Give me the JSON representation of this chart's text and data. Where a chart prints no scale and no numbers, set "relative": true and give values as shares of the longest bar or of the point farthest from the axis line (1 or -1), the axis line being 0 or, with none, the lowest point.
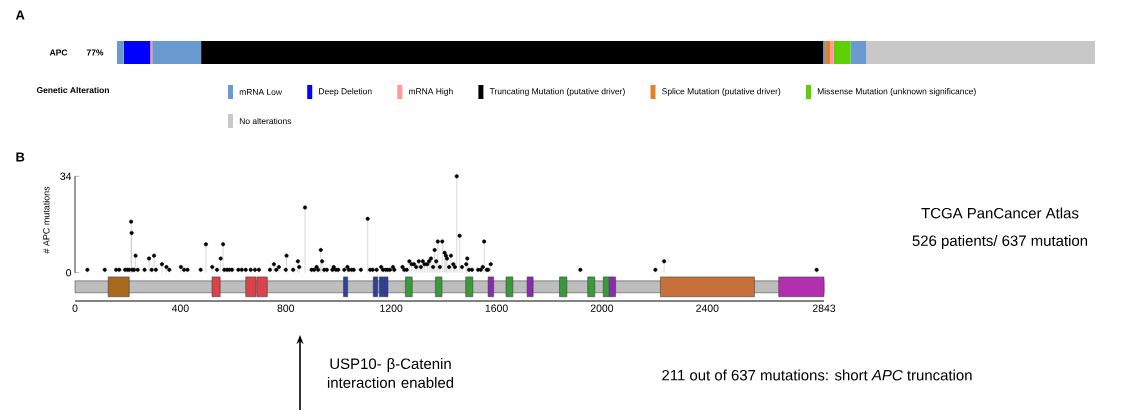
{
  "chart_data": [
    {
      "type": "bar",
      "orientation": "horizontal",
      "stacked": true,
      "relative": true,
      "title": "A",
      "categories": [
        "APC"
      ],
      "legend_title": "Genetic Alteration",
      "legend": "bottom",
      "annotations": [
        "77%"
      ],
      "series": [
        {
          "name": "mRNA Low",
          "color": "#6a9bd0",
          "values": [
            0.007
          ]
        },
        {
          "name": "Deep Deletion",
          "color": "#0000ff",
          "values": [
            0.027
          ]
        },
        {
          "name": "mRNA High",
          "color": "#ff9a9a",
          "values": [
            0.002
          ]
        },
        {
          "color": "#6a9bd0",
          "values": [
            0.05
          ]
        },
        {
          "name": "Truncating Mutation (putative driver)",
          "color": "#000000",
          "values": [
            0.636
          ]
        },
        {
          "color": "#6a9bd0",
          "values": [
            0.002
          ]
        },
        {
          "name": "Splice Mutation (putative driver)",
          "color": "#e0822a",
          "values": [
            0.005
          ]
        },
        {
          "color": "#ff9a9a",
          "values": [
            0.004
          ]
        },
        {
          "name": "Missense Mutation (unknown significance)",
          "color": "#5cd000",
          "values": [
            0.017
          ]
        },
        {
          "color": "#6a9bd0",
          "values": [
            0.016
          ]
        },
        {
          "name": "No alterations",
          "color": "#c8c8c8",
          "values": [
            0.234
          ]
        }
      ]
    },
    {
      "type": "lollipop",
      "title": "B",
      "ylabel": "# APC mutations",
      "color": "#000000",
      "marker": "circle",
      "x": [
        47,
        113,
        156,
        168,
        190,
        199,
        206,
        213,
        215,
        218,
        224,
        230,
        238,
        264,
        281,
        291,
        300,
        307,
        330,
        347,
        358,
        402,
        414,
        427,
        477,
        497,
        521,
        539,
        553,
        562,
        567,
        577,
        586,
        596,
        620,
        633,
        648,
        667,
        683,
        698,
        740,
        755,
        764,
        774,
        800,
        803,
        828,
        846,
        851,
        873,
        898,
        908,
        917,
        923,
        933,
        938,
        946,
        956,
        977,
        982,
        990,
        999,
        1022,
        1034,
        1039,
        1050,
        1058,
        1085,
        1111,
        1120,
        1130,
        1145,
        1162,
        1169,
        1179,
        1187,
        1196,
        1207,
        1212,
        1243,
        1250,
        1259,
        1269,
        1278,
        1287,
        1295,
        1305,
        1313,
        1320,
        1327,
        1337,
        1344,
        1351,
        1359,
        1365,
        1371,
        1377,
        1385,
        1394,
        1403,
        1408,
        1412,
        1420,
        1427,
        1436,
        1442,
        1449,
        1460,
        1469,
        1485,
        1489,
        1496,
        1507,
        1530,
        1540,
        1548,
        1553,
        1563,
        1568,
        1578,
        1918,
        2203,
        2236,
        2815
      ],
      "values": [
        1,
        1,
        1,
        1,
        1,
        1,
        1,
        18,
        14,
        1,
        1,
        6,
        1,
        1,
        5,
        1,
        6,
        1,
        3,
        2,
        1,
        2,
        1,
        1,
        1,
        10,
        2,
        1,
        5,
        10,
        1,
        1,
        1,
        1,
        1,
        1,
        1,
        1,
        1,
        1,
        1,
        3,
        1,
        2,
        1,
        6,
        1,
        4,
        2,
        23,
        1,
        1,
        2,
        1,
        8,
        4,
        1,
        1,
        1,
        2,
        1,
        1,
        1,
        2,
        1,
        1,
        1,
        1,
        19,
        1,
        1,
        1,
        2,
        1,
        1,
        1,
        1,
        2,
        1,
        2,
        1,
        1,
        4,
        3,
        3,
        2,
        4,
        2,
        4,
        3,
        3,
        4,
        5,
        2,
        8,
        4,
        11,
        2,
        11,
        7,
        6,
        5,
        2,
        6,
        3,
        2,
        34,
        13,
        2,
        3,
        5,
        1,
        1,
        1,
        1,
        2,
        11,
        1,
        1,
        3,
        1,
        1,
        4,
        1
      ],
      "xlim": [
        0,
        2843
      ],
      "xticks": [
        0,
        400,
        800,
        1200,
        1600,
        2000,
        2400,
        2843
      ],
      "ylim": [
        -10,
        34
      ],
      "yticks": [
        0,
        34
      ],
      "bands": [
        {
          "axis": "x",
          "from": 0,
          "to": 2843,
          "color": "#bdbdbd"
        },
        {
          "axis": "x",
          "from": 126,
          "to": 206,
          "color": "#a8681e"
        },
        {
          "axis": "x",
          "from": 520,
          "to": 551,
          "color": "#d9434b"
        },
        {
          "axis": "x",
          "from": 648,
          "to": 687,
          "color": "#d9434b"
        },
        {
          "axis": "x",
          "from": 690,
          "to": 730,
          "color": "#d9434b"
        },
        {
          "axis": "x",
          "from": 1019,
          "to": 1035,
          "color": "#2f3fa0"
        },
        {
          "axis": "x",
          "from": 1132,
          "to": 1149,
          "color": "#2f3fa0"
        },
        {
          "axis": "x",
          "from": 1155,
          "to": 1172,
          "color": "#2f3fa0"
        },
        {
          "axis": "x",
          "from": 1173,
          "to": 1188,
          "color": "#2f3fa0"
        },
        {
          "axis": "x",
          "from": 1254,
          "to": 1280,
          "color": "#3a9a3a"
        },
        {
          "axis": "x",
          "from": 1368,
          "to": 1393,
          "color": "#3a9a3a"
        },
        {
          "axis": "x",
          "from": 1483,
          "to": 1510,
          "color": "#3a9a3a"
        },
        {
          "axis": "x",
          "from": 1568,
          "to": 1589,
          "color": "#8a2bb0"
        },
        {
          "axis": "x",
          "from": 1636,
          "to": 1662,
          "color": "#3a9a3a"
        },
        {
          "axis": "x",
          "from": 1716,
          "to": 1739,
          "color": "#8a2bb0"
        },
        {
          "axis": "x",
          "from": 1839,
          "to": 1867,
          "color": "#3a9a3a"
        },
        {
          "axis": "x",
          "from": 1946,
          "to": 1973,
          "color": "#3a9a3a"
        },
        {
          "axis": "x",
          "from": 2005,
          "to": 2028,
          "color": "#3a9a3a"
        },
        {
          "axis": "x",
          "from": 2028,
          "to": 2052,
          "color": "#8a2bb0"
        },
        {
          "axis": "x",
          "from": 2222,
          "to": 2579,
          "color": "#c8703a"
        },
        {
          "axis": "x",
          "from": 2671,
          "to": 2843,
          "color": "#b030b0"
        }
      ],
      "annotations": [
        "TCGA PanCancer Atlas",
        "526 patients/ 637 mutation",
        "USP10- β-Catenin interaction enabled",
        "211 out of 637 mutations: short *APC* truncation"
      ]
    }
  ]
}
